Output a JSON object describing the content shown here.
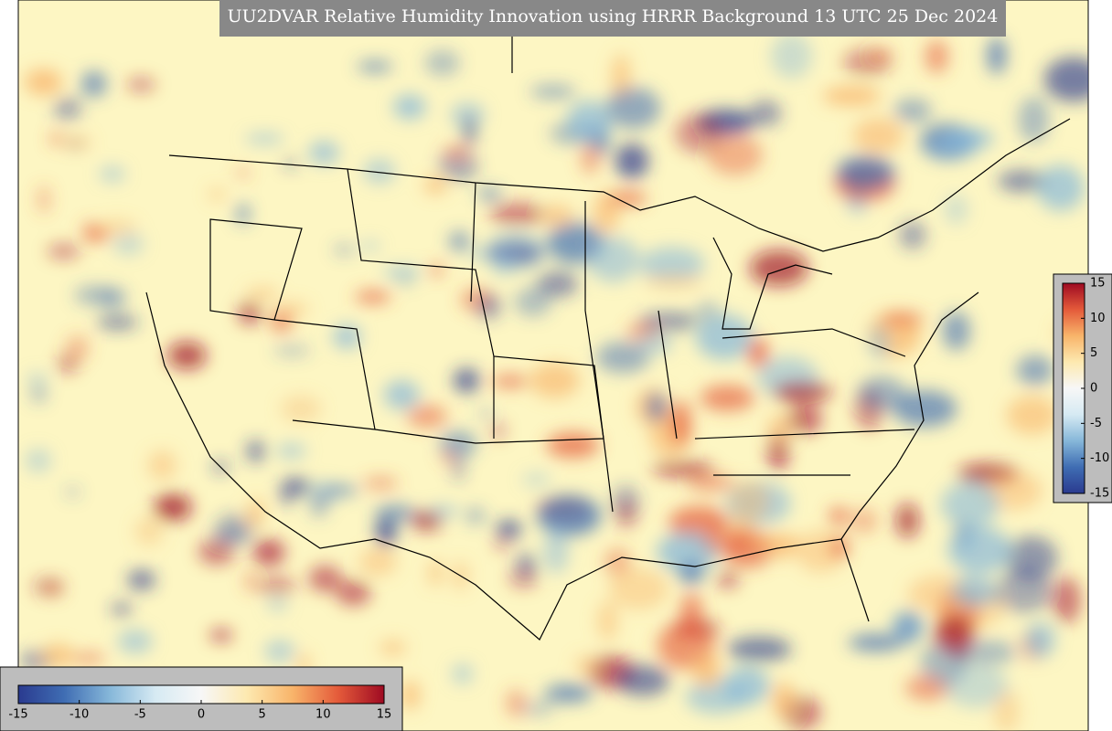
{
  "title": "UU2DVAR Relative Humidity Innovation using HRRR Background 13 UTC 25 Dec 2024",
  "colorbar_horizontal": {
    "lim": [
      -15,
      15
    ],
    "ticks": [
      -15,
      -10,
      -5,
      0,
      5,
      10,
      15
    ]
  },
  "colorbar_vertical": {
    "lim": [
      -15,
      15
    ],
    "ticks": [
      15,
      10,
      5,
      0,
      -5,
      -10,
      -15
    ]
  },
  "colors": [
    "#2a3a8f",
    "#3f6db3",
    "#86b7d9",
    "#d6eaf3",
    "#f7f7f7",
    "#fde9b0",
    "#f8b46a",
    "#e45a3a",
    "#9e0a22"
  ]
}
